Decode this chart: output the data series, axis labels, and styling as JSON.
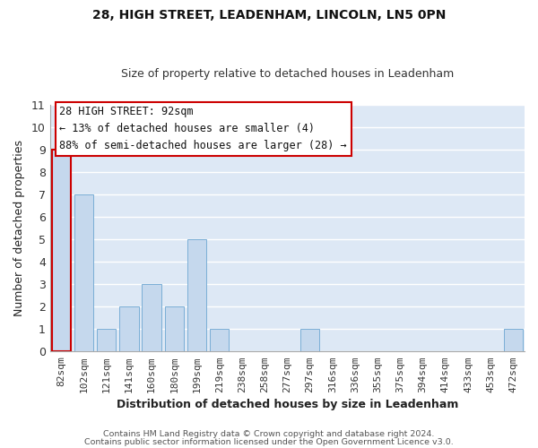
{
  "title_line1": "28, HIGH STREET, LEADENHAM, LINCOLN, LN5 0PN",
  "title_line2": "Size of property relative to detached houses in Leadenham",
  "xlabel": "Distribution of detached houses by size in Leadenham",
  "ylabel": "Number of detached properties",
  "bin_labels": [
    "82sqm",
    "102sqm",
    "121sqm",
    "141sqm",
    "160sqm",
    "180sqm",
    "199sqm",
    "219sqm",
    "238sqm",
    "258sqm",
    "277sqm",
    "297sqm",
    "316sqm",
    "336sqm",
    "355sqm",
    "375sqm",
    "394sqm",
    "414sqm",
    "433sqm",
    "453sqm",
    "472sqm"
  ],
  "bar_heights": [
    9,
    7,
    1,
    2,
    3,
    2,
    5,
    1,
    0,
    0,
    0,
    1,
    0,
    0,
    0,
    0,
    0,
    0,
    0,
    0,
    1
  ],
  "bar_color": "#c5d8ed",
  "highlight_bar_index": 0,
  "highlight_edge_color": "#cc0000",
  "normal_edge_color": "#7aaed6",
  "ylim": [
    0,
    11
  ],
  "yticks": [
    0,
    1,
    2,
    3,
    4,
    5,
    6,
    7,
    8,
    9,
    10,
    11
  ],
  "annotation_line1": "28 HIGH STREET: 92sqm",
  "annotation_line2": "← 13% of detached houses are smaller (4)",
  "annotation_line3": "88% of semi-detached houses are larger (28) →",
  "footer_line1": "Contains HM Land Registry data © Crown copyright and database right 2024.",
  "footer_line2": "Contains public sector information licensed under the Open Government Licence v3.0.",
  "bg_color": "#ffffff",
  "plot_bg_color": "#dde8f5",
  "grid_color": "#ffffff",
  "title1_fontsize": 10,
  "title2_fontsize": 9,
  "xlabel_fontsize": 9,
  "ylabel_fontsize": 9,
  "tick_fontsize": 8,
  "ann_fontsize": 8.5
}
